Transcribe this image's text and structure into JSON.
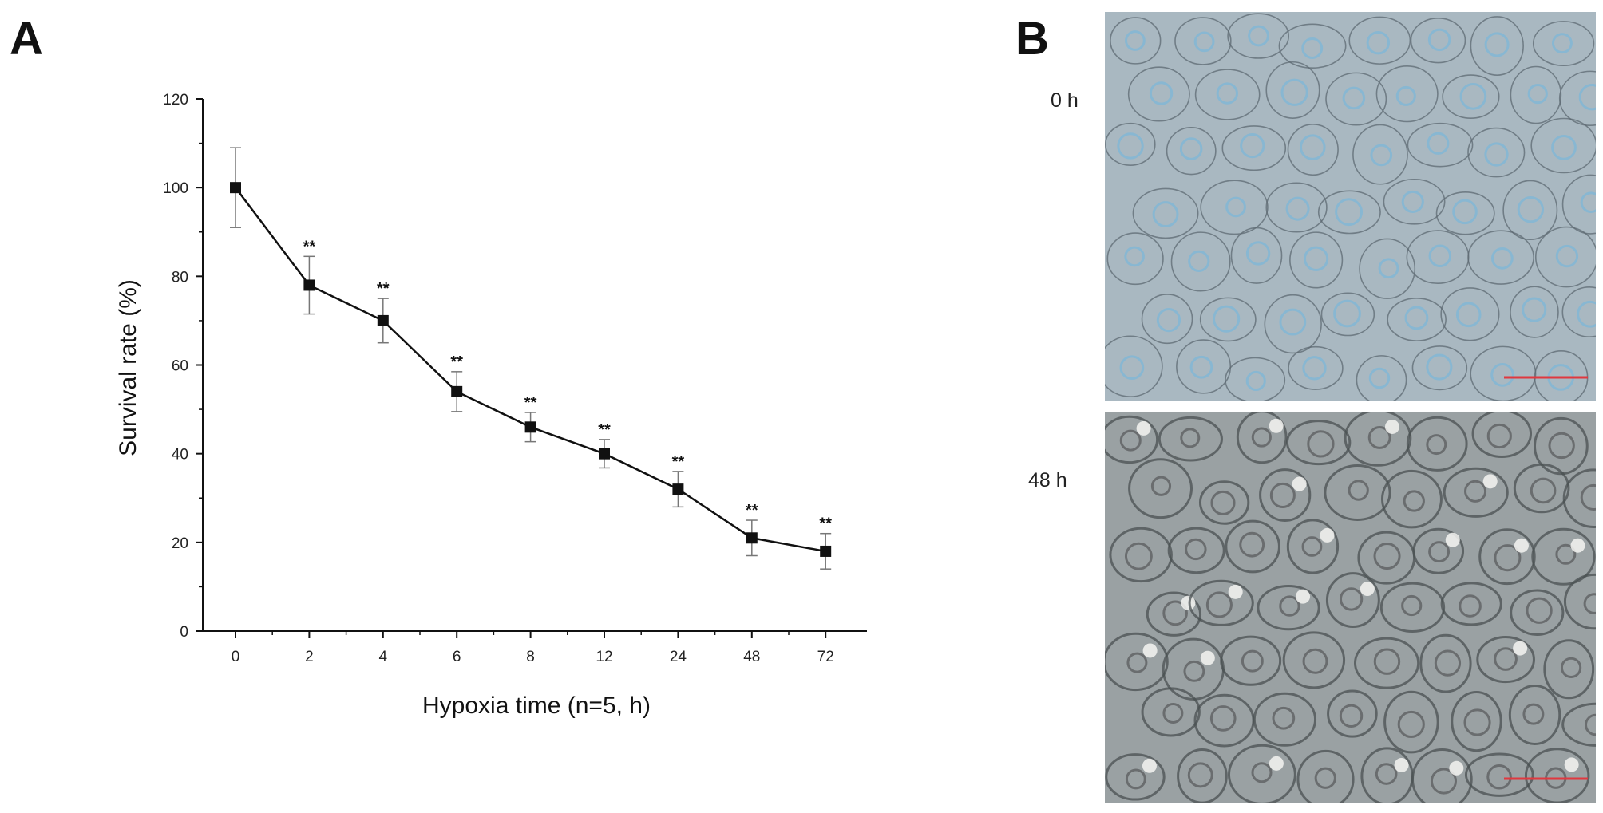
{
  "panels": {
    "a_label": "A",
    "b_label": "B"
  },
  "micrographs": [
    {
      "label": "0 h",
      "tone": "#a9b8c1",
      "scale_bar_color": "#e0383f"
    },
    {
      "label": "48 h",
      "tone": "#9aa1a3",
      "scale_bar_color": "#e0383f"
    }
  ],
  "chart_data": {
    "type": "line",
    "xlabel": "Hypoxia time (n=5, h)",
    "ylabel": "Survival rate (%)",
    "categories": [
      "0",
      "2",
      "4",
      "6",
      "8",
      "12",
      "24",
      "48",
      "72"
    ],
    "values": [
      100,
      78,
      70,
      54,
      46,
      40,
      32,
      21,
      18
    ],
    "errors": [
      9,
      6.5,
      5,
      4.5,
      3.3,
      3.2,
      4,
      4,
      4
    ],
    "annotations": [
      "",
      "**",
      "**",
      "**",
      "**",
      "**",
      "**",
      "**",
      "**"
    ],
    "ylim": [
      0,
      120
    ],
    "yticks": [
      0,
      20,
      40,
      60,
      80,
      100,
      120
    ],
    "grid": false,
    "marker": "square",
    "line_color": "#111111",
    "error_color": "#777777"
  }
}
